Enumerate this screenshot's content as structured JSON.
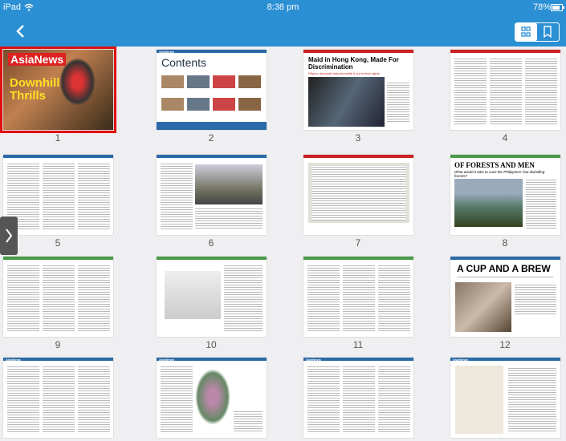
{
  "status_bar": {
    "device": "iPad",
    "time": "8:38 pm",
    "battery": "78%"
  },
  "thumbnails": [
    {
      "number": 1,
      "masthead": "AsiaNews",
      "title": "Downhill Thrills"
    },
    {
      "number": 2,
      "masthead": "AsiaNews",
      "title": "Contents"
    },
    {
      "number": 3,
      "title": "Maid in Hong Kong, Made For Discrimination",
      "subtitle": "Filipino domestic helpers battle it out in their rights"
    },
    {
      "number": 4
    },
    {
      "number": 5
    },
    {
      "number": 6
    },
    {
      "number": 7
    },
    {
      "number": 8,
      "title": "OF FORESTS AND MEN",
      "subtitle": "What would it take to save the Philippines' fast dwindling forests?"
    },
    {
      "number": 9
    },
    {
      "number": 10
    },
    {
      "number": 11
    },
    {
      "number": 12,
      "title": "A CUP AND A BREW"
    },
    {
      "masthead": "AsiaNews"
    },
    {
      "masthead": "AsiaNews"
    },
    {
      "masthead": "AsiaNews"
    },
    {
      "masthead": "AsiaNews"
    }
  ]
}
